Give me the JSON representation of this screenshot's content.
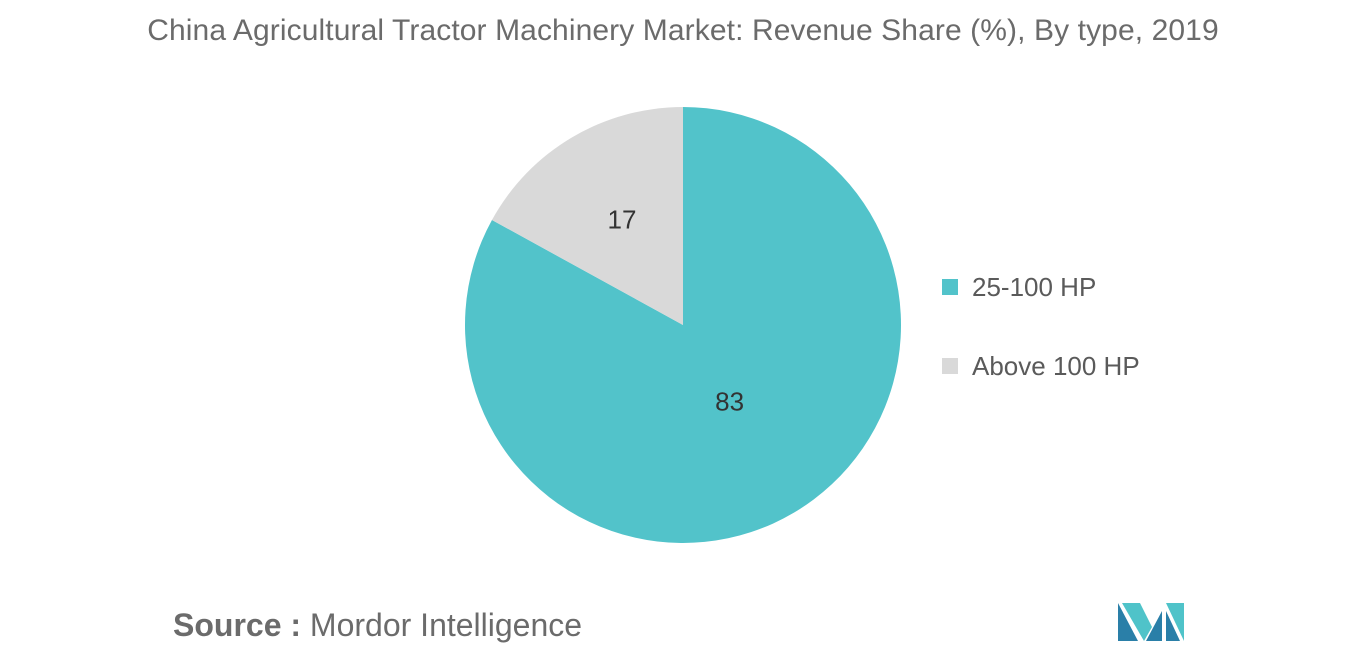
{
  "title": "China Agricultural Tractor Machinery Market: Revenue Share (%), By type, 2019",
  "source": {
    "label": "Source :",
    "text": "Mordor Intelligence"
  },
  "logo": {
    "icon": "mordor-intelligence-logo-icon",
    "colors": [
      "#2a7fa8",
      "#4fc3c9"
    ]
  },
  "chart_data": {
    "type": "pie",
    "categories": [
      "25-100 HP",
      "Above 100 HP"
    ],
    "values": [
      83,
      17
    ],
    "colors": [
      "#52c3ca",
      "#d9d9d9"
    ],
    "data_labels": [
      "83",
      "17"
    ],
    "legend_position": "right"
  }
}
